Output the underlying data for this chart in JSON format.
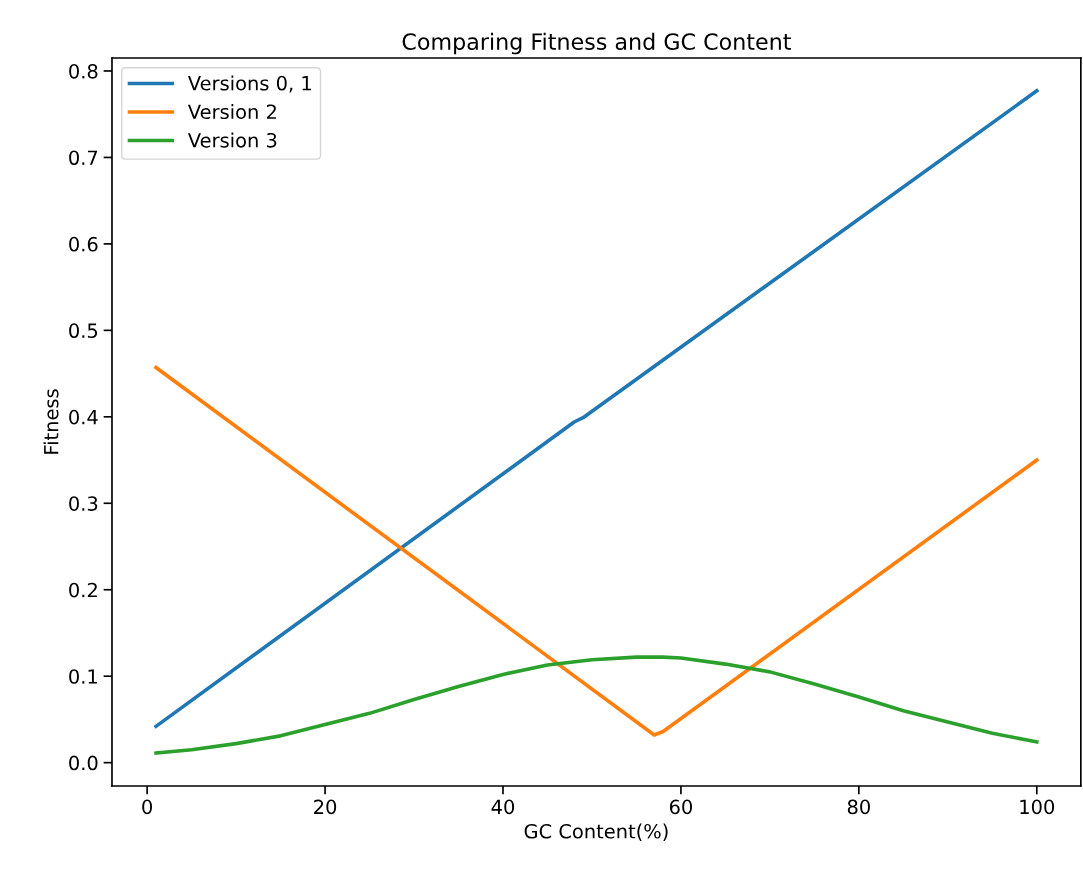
{
  "chart_data": {
    "type": "line",
    "title": "Comparing Fitness and GC Content",
    "xlabel": "GC Content(%)",
    "ylabel": "Fitness",
    "xlim": [
      -3.95,
      104.95
    ],
    "ylim": [
      -0.027,
      0.815
    ],
    "xticks": [
      0,
      20,
      40,
      60,
      80,
      100
    ],
    "yticks": [
      {
        "value": 0,
        "label": "0.0"
      },
      0.1,
      0.2,
      0.3,
      0.4,
      0.5,
      0.6,
      0.7,
      0.8
    ],
    "legend": "top left",
    "grid": false,
    "series": [
      {
        "name": "Versions 0, 1",
        "color": "#1f77b4",
        "x": [
          1,
          48,
          49,
          100
        ],
        "values": [
          0.042,
          0.394,
          0.399,
          0.777
        ]
      },
      {
        "name": "Version 2",
        "color": "#ff7f0e",
        "x": [
          1,
          57,
          58,
          100
        ],
        "values": [
          0.457,
          0.032,
          0.036,
          0.35
        ]
      },
      {
        "name": "Version 3",
        "color": "#2ca02c",
        "x": [
          1,
          5,
          10,
          15,
          20,
          25,
          30,
          35,
          40,
          45,
          50,
          55,
          58,
          60,
          65,
          70,
          75,
          80,
          85,
          90,
          95,
          100
        ],
        "values": [
          0.011,
          0.015,
          0.022,
          0.031,
          0.044,
          0.057,
          0.073,
          0.088,
          0.102,
          0.113,
          0.119,
          0.122,
          0.122,
          0.121,
          0.114,
          0.105,
          0.091,
          0.076,
          0.06,
          0.047,
          0.034,
          0.024
        ]
      }
    ]
  }
}
